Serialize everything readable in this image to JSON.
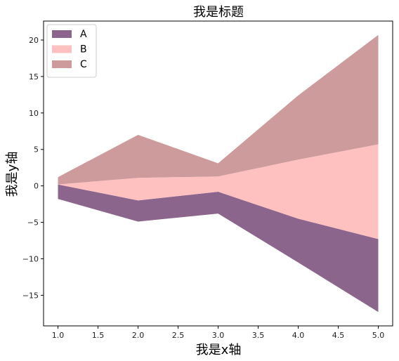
{
  "chart_data": {
    "type": "area",
    "title": "我是标题",
    "xlabel": "我是x轴",
    "ylabel": "我是y轴",
    "x": [
      1,
      2,
      3,
      4,
      5
    ],
    "xlim": [
      0.82,
      5.18
    ],
    "ylim": [
      -19.2,
      22.6
    ],
    "xticks": [
      1.0,
      1.5,
      2.0,
      2.5,
      3.0,
      3.5,
      4.0,
      4.5,
      5.0
    ],
    "xtick_labels": [
      "1.0",
      "1.5",
      "2.0",
      "2.5",
      "3.0",
      "3.5",
      "4.0",
      "4.5",
      "5.0"
    ],
    "yticks": [
      -15,
      -10,
      -5,
      0,
      5,
      10,
      15,
      20
    ],
    "ytick_labels": [
      "−15",
      "−10",
      "−5",
      "0",
      "5",
      "10",
      "15",
      "20"
    ],
    "legend_position": "top-left",
    "grid": false,
    "series": [
      {
        "name": "A",
        "color": "#8b658b",
        "lower": [
          -1.8,
          -4.9,
          -3.8,
          -10.5,
          -17.3
        ],
        "upper": [
          0.2,
          -2.0,
          -0.8,
          -4.5,
          -7.3
        ]
      },
      {
        "name": "B",
        "color": "#ffc0c0",
        "lower": [
          0.2,
          -2.0,
          -0.8,
          -4.5,
          -7.3
        ],
        "upper": [
          0.2,
          1.1,
          1.3,
          3.6,
          5.7
        ]
      },
      {
        "name": "C",
        "color": "#cd9b9b",
        "lower": [
          0.2,
          1.1,
          1.3,
          3.6,
          5.7
        ],
        "upper": [
          1.2,
          7.0,
          3.1,
          12.4,
          20.7
        ]
      }
    ]
  }
}
